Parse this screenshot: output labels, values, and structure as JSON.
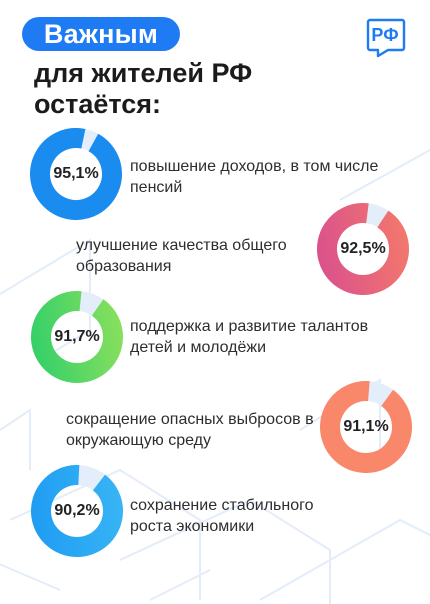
{
  "header": {
    "pill_text": "Важным",
    "title_line1": "для жителей РФ",
    "title_line2": "остаётся:",
    "logo_text": "РФ"
  },
  "colors": {
    "accent": "#1e7bf4",
    "track": "#e4eefb"
  },
  "chart_data": {
    "type": "donut",
    "unit": "%",
    "items": [
      {
        "label": "повышение доходов, в том числе пенсий",
        "value": 95.1,
        "value_label": "95,1%",
        "color_start": "#1a8cf0",
        "color_end": "#1a8cf0"
      },
      {
        "label": "улучшение качества общего образования",
        "value": 92.5,
        "value_label": "92,5%",
        "color_start": "#d94f8e",
        "color_end": "#f47a6a"
      },
      {
        "label": "поддержка и развитие талантов детей и молодёжи",
        "value": 91.7,
        "value_label": "91,7%",
        "color_start": "#2fcf6a",
        "color_end": "#8de05c"
      },
      {
        "label": "сокращение опасных выбросов в окружающую среду",
        "value": 91.1,
        "value_label": "91,1%",
        "color_start": "#f9876a",
        "color_end": "#f9876a"
      },
      {
        "label": "сохранение стабильного роста экономики",
        "value": 90.2,
        "value_label": "90,2%",
        "color_start": "#1e9bf2",
        "color_end": "#39b6f5"
      }
    ]
  }
}
